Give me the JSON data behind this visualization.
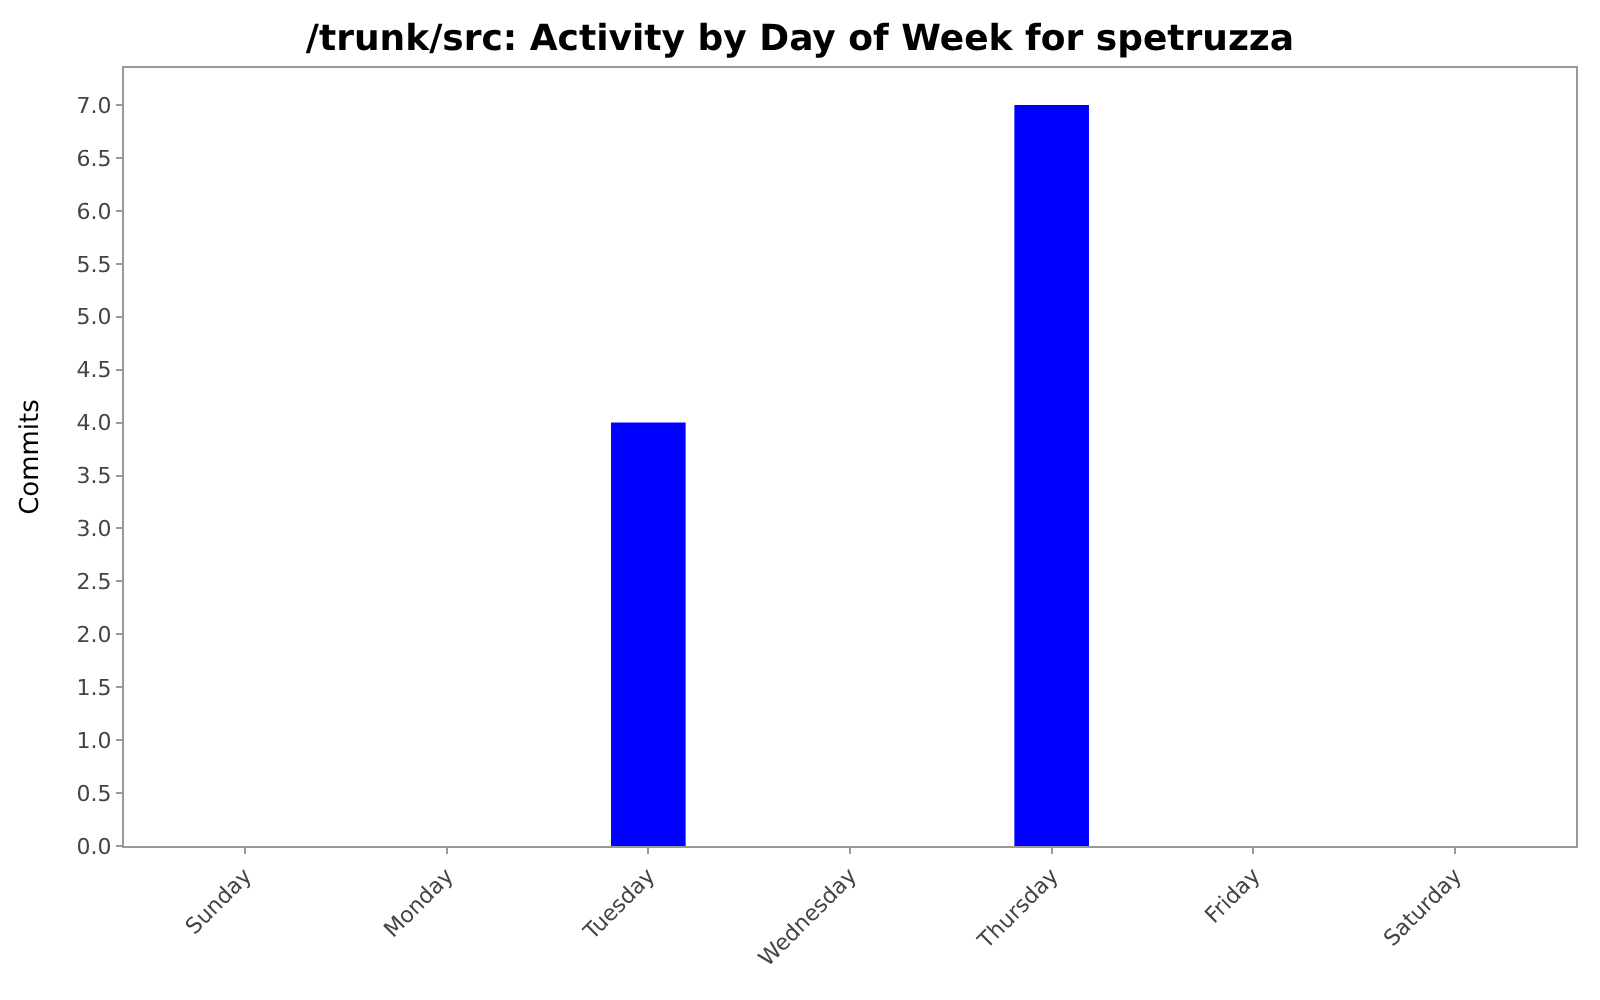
{
  "chart_data": {
    "type": "bar",
    "title": "/trunk/src: Activity by Day of Week for spetruzza",
    "ylabel": "Commits",
    "categories": [
      "Sunday",
      "Monday",
      "Tuesday",
      "Wednesday",
      "Thursday",
      "Friday",
      "Saturday"
    ],
    "values": [
      0,
      0,
      4,
      0,
      7,
      0,
      0
    ],
    "color": "#0000ff",
    "ylim": [
      0,
      7.35
    ],
    "yticks": [
      {
        "value": 0,
        "label": "0.0"
      },
      {
        "value": 0.5,
        "label": "0.5"
      },
      {
        "value": 1,
        "label": "1.0"
      },
      {
        "value": 1.5,
        "label": "1.5"
      },
      {
        "value": 2,
        "label": "2.0"
      },
      {
        "value": 2.5,
        "label": "2.5"
      },
      {
        "value": 3,
        "label": "3.0"
      },
      {
        "value": 3.5,
        "label": "3.5"
      },
      {
        "value": 4,
        "label": "4.0"
      },
      {
        "value": 4.5,
        "label": "4.5"
      },
      {
        "value": 5,
        "label": "5.0"
      },
      {
        "value": 5.5,
        "label": "5.5"
      },
      {
        "value": 6,
        "label": "6.0"
      },
      {
        "value": 6.5,
        "label": "6.5"
      },
      {
        "value": 7,
        "label": "7.0"
      }
    ],
    "grid": false
  }
}
